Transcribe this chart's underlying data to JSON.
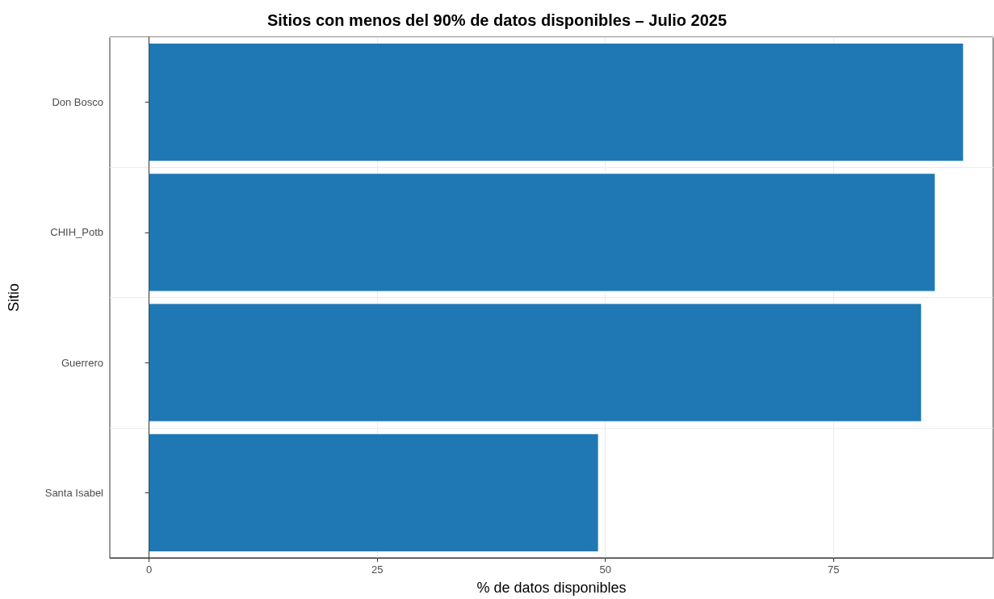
{
  "chart_data": {
    "type": "bar",
    "orientation": "horizontal",
    "title": "Sitios con menos del 90% de datos disponibles – Julio 2025",
    "xlabel": "% de datos disponibles",
    "ylabel": "Sitio",
    "categories": [
      "Don Bosco",
      "CHIH_Potb",
      "Guerrero",
      "Santa Isabel"
    ],
    "values": [
      89.2,
      86.1,
      84.6,
      49.2
    ],
    "color": "#1f78b4",
    "xlim": [
      -4.3,
      92.5
    ],
    "xticks": [
      0,
      25,
      50,
      75
    ],
    "grid": true
  }
}
